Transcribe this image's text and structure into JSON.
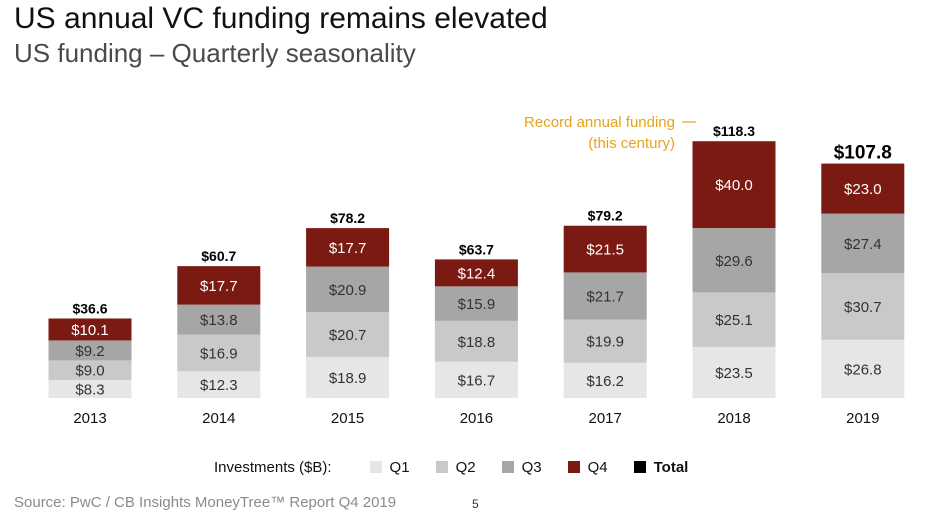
{
  "title": "US annual VC funding remains elevated",
  "subtitle": "US funding – Quarterly seasonality",
  "source": "Source: PwC / CB Insights MoneyTree™ Report Q4 2019",
  "page_number": "5",
  "colors": {
    "q1": "#e6e6e6",
    "q2": "#c9c9c9",
    "q3": "#a6a6a6",
    "q4": "#7b1a12",
    "total": "#000000",
    "annotation": "#e8a21c"
  },
  "legend": {
    "title": "Investments ($B):",
    "items": [
      "Q1",
      "Q2",
      "Q3",
      "Q4",
      "Total"
    ]
  },
  "chart_data": {
    "type": "bar",
    "stacked": true,
    "categories": [
      "2013",
      "2014",
      "2015",
      "2016",
      "2017",
      "2018",
      "2019"
    ],
    "series": [
      {
        "name": "Q1",
        "values": [
          8.3,
          12.3,
          18.9,
          16.7,
          16.2,
          23.5,
          26.8
        ],
        "labels": [
          "$8.3",
          "$12.3",
          "$18.9",
          "$16.7",
          "$16.2",
          "$23.5",
          "$26.8"
        ]
      },
      {
        "name": "Q2",
        "values": [
          9.0,
          16.9,
          20.7,
          18.8,
          19.9,
          25.1,
          30.7
        ],
        "labels": [
          "$9.0",
          "$16.9",
          "$20.7",
          "$18.8",
          "$19.9",
          "$25.1",
          "$30.7"
        ]
      },
      {
        "name": "Q3",
        "values": [
          9.2,
          13.8,
          20.9,
          15.9,
          21.7,
          29.6,
          27.4
        ],
        "labels": [
          "$9.2",
          "$13.8",
          "$20.9",
          "$15.9",
          "$21.7",
          "$29.6",
          "$27.4"
        ]
      },
      {
        "name": "Q4",
        "values": [
          10.1,
          17.7,
          17.7,
          12.4,
          21.5,
          40.0,
          23.0
        ],
        "labels": [
          "$10.1",
          "$17.7",
          "$17.7",
          "$12.4",
          "$21.5",
          "$40.0",
          "$23.0"
        ]
      }
    ],
    "totals": [
      36.6,
      60.7,
      78.2,
      63.7,
      79.2,
      118.3,
      107.8
    ],
    "total_labels": [
      "$36.6",
      "$60.7",
      "$78.2",
      "$63.7",
      "$79.2",
      "$118.3",
      "$107.8"
    ],
    "ylim": [
      0,
      118.3
    ],
    "grid": false,
    "legend_position": "bottom",
    "annotation": {
      "lines": [
        "Record annual funding",
        "(this century)"
      ],
      "category": "2018"
    }
  }
}
